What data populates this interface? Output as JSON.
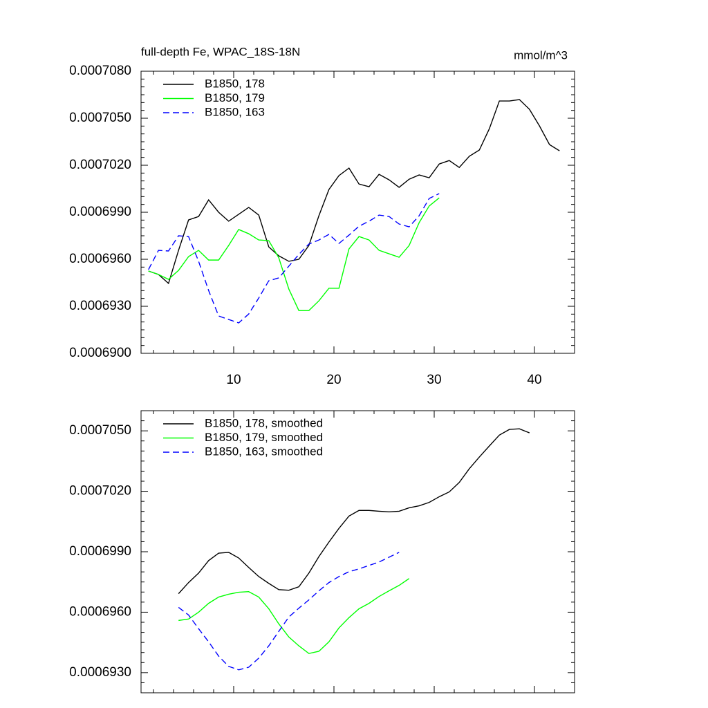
{
  "chart_data": [
    {
      "type": "line",
      "title": "full-depth Fe, WPAC_18S-18N",
      "units": "mmol/m^3",
      "x": [
        1.5,
        2.5,
        3.5,
        4.5,
        5.5,
        6.5,
        7.5,
        8.5,
        9.5,
        10.5,
        11.5,
        12.5,
        13.5,
        14.5,
        15.5,
        16.5,
        17.5,
        18.5,
        19.5,
        20.5,
        21.5,
        22.5,
        23.5,
        24.5,
        25.5,
        26.5,
        27.5,
        28.5,
        29.5,
        30.5,
        31.5,
        32.5,
        33.5,
        34.5,
        35.5,
        36.5,
        37.5,
        38.5,
        39.5,
        40.5,
        41.5,
        42.5
      ],
      "xlim": [
        0.76,
        44
      ],
      "xticks": [
        10,
        20,
        30,
        40
      ],
      "ylim": [
        0.00069,
        0.000708
      ],
      "yticks": [
        {
          "value": 0.00069,
          "label": "0.0006900"
        },
        {
          "value": 0.000693,
          "label": "0.0006930"
        },
        {
          "value": 0.000696,
          "label": "0.0006960"
        },
        {
          "value": 0.000699,
          "label": "0.0006990"
        },
        {
          "value": 0.000702,
          "label": "0.0007020"
        },
        {
          "value": 0.000705,
          "label": "0.0007050"
        },
        {
          "value": 0.000708,
          "label": "0.0007080"
        }
      ],
      "series": [
        {
          "name": "B1850, 178",
          "color": "#000000",
          "dashed": false,
          "values": [
            0.00069525,
            0.00069503,
            0.00069446,
            0.00069657,
            0.00069851,
            0.00069873,
            0.00069979,
            0.000699,
            0.00069843,
            0.00069887,
            0.00069931,
            0.00069882,
            0.00069679,
            0.00069622,
            0.00069587,
            0.000696,
            0.00069688,
            0.00069878,
            0.00070045,
            0.00070134,
            0.00070182,
            0.0007008,
            0.00070063,
            0.00070142,
            0.00070107,
            0.00070059,
            0.00070111,
            0.00070138,
            0.0007012,
            0.00070208,
            0.0007023,
            0.00070186,
            0.00070257,
            0.00070297,
            0.00070433,
            0.0007061,
            0.0007061,
            0.00070619,
            0.00070557,
            0.00070451,
            0.00070332,
            0.00070292
          ]
        },
        {
          "name": "B1850, 179",
          "color": "#00ff00",
          "dashed": false,
          "values": [
            0.00069525,
            0.00069503,
            0.00069472,
            0.00069529,
            0.00069617,
            0.00069657,
            0.00069595,
            0.00069595,
            0.00069688,
            0.0006979,
            0.00069763,
            0.00069723,
            0.00069719,
            0.00069609,
            0.0006941,
            0.00069273,
            0.00069273,
            0.00069335,
            0.00069415,
            0.00069415,
            0.00069666,
            0.00069745,
            0.00069723,
            0.00069657,
            0.00069635,
            0.00069613,
            0.00069688,
            0.00069834,
            0.0006994,
            0.00069992,
            null,
            null,
            null,
            null,
            null,
            null,
            null,
            null,
            null,
            null,
            null,
            null
          ]
        },
        {
          "name": "B1850, 163",
          "color": "#0000ff",
          "dashed": true,
          "values": [
            0.00069534,
            0.00069657,
            0.00069653,
            0.0006975,
            0.00069745,
            0.00069587,
            0.00069401,
            0.00069238,
            0.00069216,
            0.00069194,
            0.00069251,
            0.00069353,
            0.00069463,
            0.00069481,
            0.00069556,
            0.00069631,
            0.00069697,
            0.00069723,
            0.00069759,
            0.00069701,
            0.00069754,
            0.00069811,
            0.00069843,
            0.00069882,
            0.00069873,
            0.00069825,
            0.00069807,
            0.00069878,
            0.00069988,
            0.00070019,
            null,
            null,
            null,
            null,
            null,
            null,
            null,
            null,
            null,
            null,
            null,
            null
          ]
        }
      ]
    },
    {
      "type": "line",
      "x": [
        4.5,
        5.5,
        6.5,
        7.5,
        8.5,
        9.5,
        10.5,
        11.5,
        12.5,
        13.5,
        14.5,
        15.5,
        16.5,
        17.5,
        18.5,
        19.5,
        20.5,
        21.5,
        22.5,
        23.5,
        24.5,
        25.5,
        26.5,
        27.5,
        28.5,
        29.5,
        30.5,
        31.5,
        32.5,
        33.5,
        34.5,
        35.5,
        36.5,
        37.5,
        38.5,
        39.5
      ],
      "xlim": [
        0.76,
        44
      ],
      "xticks": [
        10,
        20,
        30,
        40
      ],
      "ylim": [
        0.000692,
        0.000706
      ],
      "yticks": [
        {
          "value": 0.000693,
          "label": "0.0006930"
        },
        {
          "value": 0.000696,
          "label": "0.0006960"
        },
        {
          "value": 0.000699,
          "label": "0.0006990"
        },
        {
          "value": 0.000702,
          "label": "0.0007020"
        },
        {
          "value": 0.000705,
          "label": "0.0007050"
        }
      ],
      "series": [
        {
          "name": "B1850, 178, smoothed",
          "color": "#000000",
          "dashed": false,
          "values": [
            0.00069692,
            0.00069747,
            0.00069794,
            0.00069856,
            0.00069893,
            0.00069897,
            0.00069869,
            0.00069822,
            0.00069777,
            0.00069743,
            0.00069712,
            0.00069709,
            0.00069726,
            0.00069794,
            0.00069876,
            0.00069948,
            0.00070016,
            0.00070077,
            0.00070105,
            0.00070105,
            0.00070101,
            0.00070098,
            0.00070101,
            0.00070118,
            0.00070128,
            0.00070145,
            0.00070173,
            0.00070197,
            0.00070244,
            0.00070312,
            0.0007037,
            0.00070425,
            0.00070479,
            0.00070507,
            0.0007051,
            0.0007049
          ]
        },
        {
          "name": "B1850, 179, smoothed",
          "color": "#00ff00",
          "dashed": false,
          "values": [
            0.00069559,
            0.00069566,
            0.000696,
            0.00069644,
            0.00069675,
            0.00069689,
            0.00069699,
            0.00069702,
            0.00069675,
            0.00069617,
            0.00069542,
            0.00069477,
            0.00069433,
            0.00069395,
            0.00069406,
            0.00069453,
            0.00069522,
            0.00069573,
            0.00069617,
            0.00069644,
            0.00069678,
            0.00069706,
            0.00069733,
            0.00069767,
            null,
            null,
            null,
            null,
            null,
            null,
            null,
            null,
            null,
            null,
            null,
            null
          ]
        },
        {
          "name": "B1850, 163, smoothed",
          "color": "#0000ff",
          "dashed": true,
          "values": [
            0.00069624,
            0.00069586,
            0.00069518,
            0.00069453,
            0.00069382,
            0.00069331,
            0.00069314,
            0.00069327,
            0.00069372,
            0.00069433,
            0.00069505,
            0.00069576,
            0.0006962,
            0.00069661,
            0.00069706,
            0.00069747,
            0.00069777,
            0.00069801,
            0.00069815,
            0.00069832,
            0.00069849,
            0.00069873,
            0.00069897,
            null,
            null,
            null,
            null,
            null,
            null,
            null,
            null,
            null,
            null,
            null,
            null,
            null
          ]
        }
      ]
    }
  ]
}
